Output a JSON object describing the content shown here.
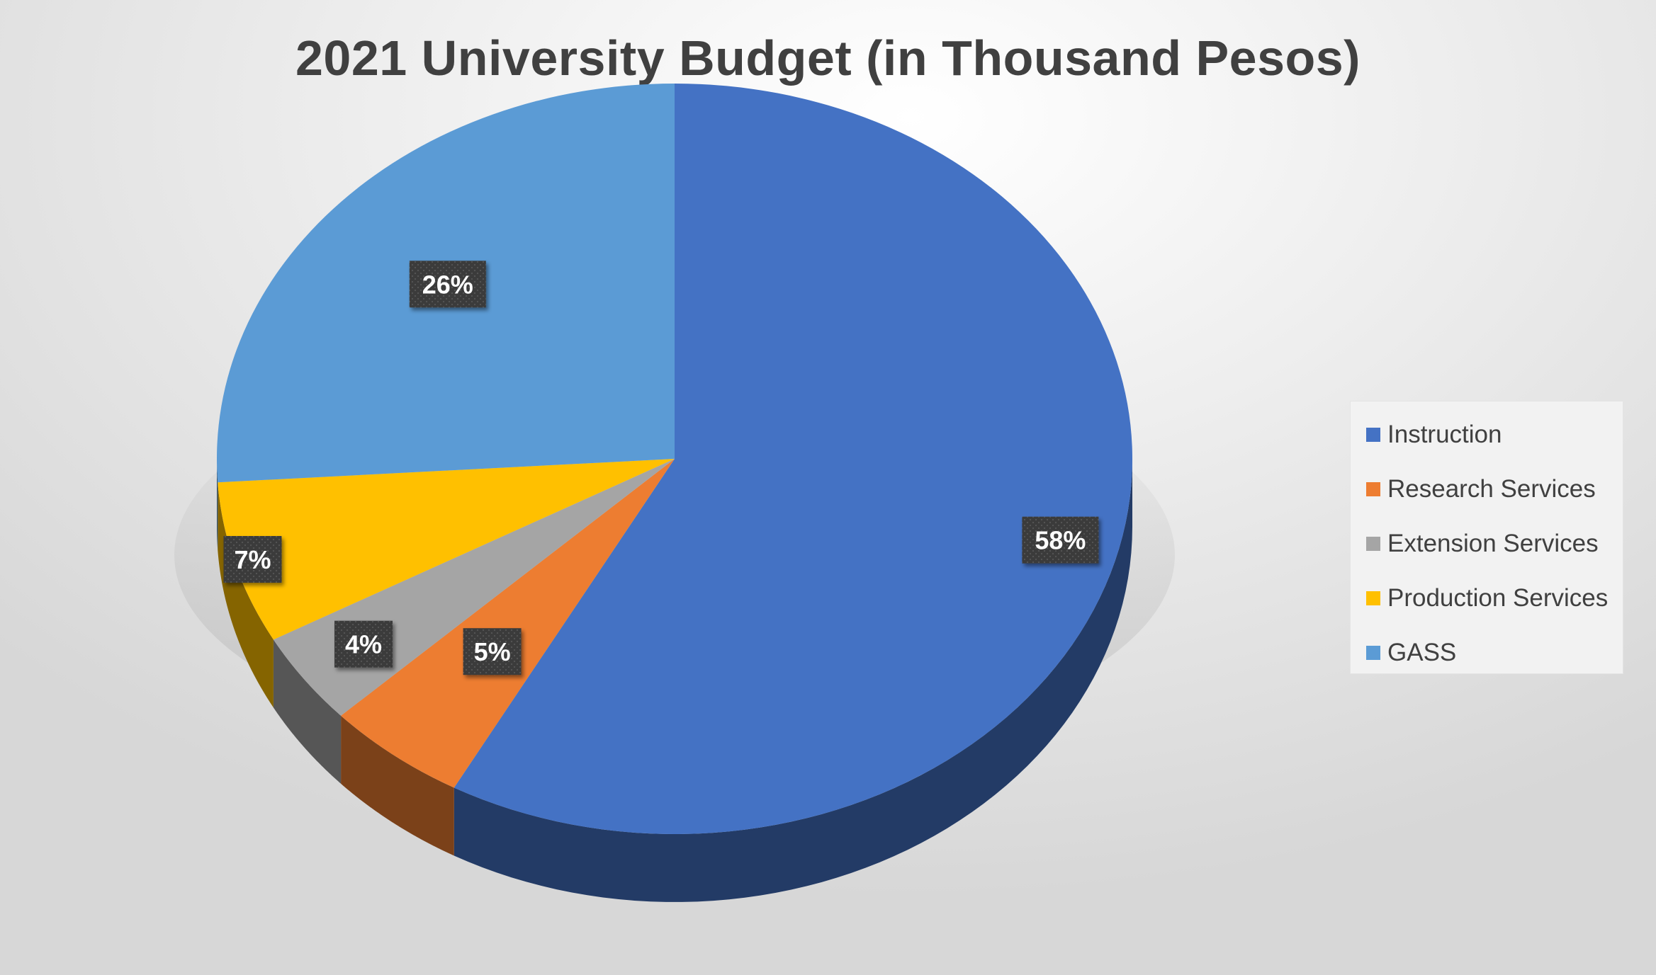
{
  "chart_data": {
    "type": "pie",
    "title": "2021 University Budget (in Thousand Pesos)",
    "categories": [
      "Instruction",
      "Research Services",
      "Extension Services",
      "Production Services",
      "GASS"
    ],
    "values": [
      58,
      5,
      4,
      7,
      26
    ],
    "data_labels": [
      "58%",
      "5%",
      "4%",
      "7%",
      "26%"
    ],
    "colors": [
      "#4472C4",
      "#ED7D31",
      "#A5A5A5",
      "#FFC000",
      "#5B9BD5"
    ],
    "legend_position": "right",
    "style": "3d"
  }
}
